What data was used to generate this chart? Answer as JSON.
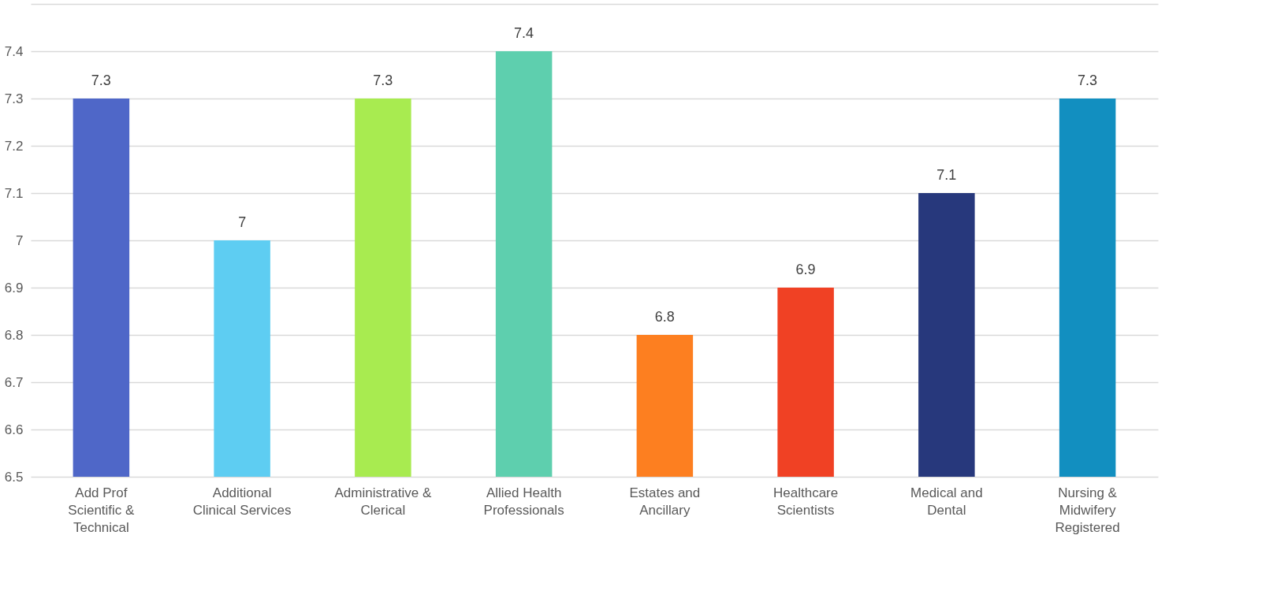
{
  "chart_data": {
    "type": "bar",
    "categories": [
      "Add Prof Scientific & Technical",
      "Additional Clinical Services",
      "Administrative & Clerical",
      "Allied Health Professionals",
      "Estates and Ancillary",
      "Healthcare Scientists",
      "Medical and Dental",
      "Nursing & Midwifery Registered"
    ],
    "values": [
      7.3,
      7,
      7.3,
      7.4,
      6.8,
      6.9,
      7.1,
      7.3
    ],
    "colors": [
      "#4f67c8",
      "#5ecdf2",
      "#a8eb50",
      "#5ecfae",
      "#fd7f20",
      "#f04124",
      "#27387c",
      "#128fc0"
    ],
    "ylim": [
      6.5,
      7.5
    ],
    "yticks": [
      6.5,
      6.6,
      6.7,
      6.8,
      6.9,
      7,
      7.1,
      7.2,
      7.3,
      7.4,
      {
        "value": 7.5,
        "label": null
      }
    ],
    "grid": "y",
    "data_labels": true
  }
}
